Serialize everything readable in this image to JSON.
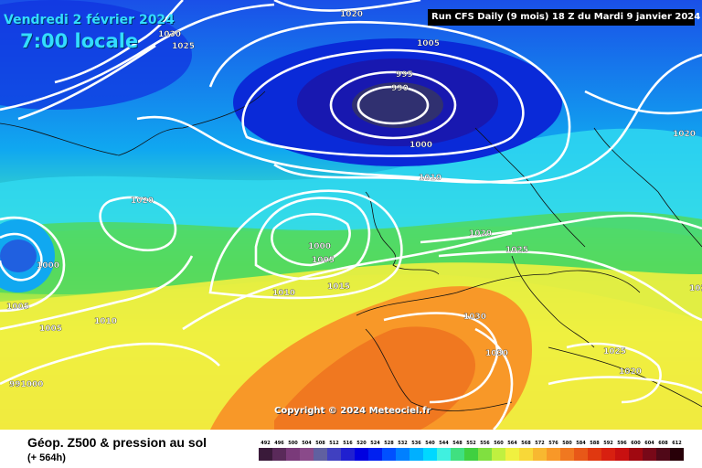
{
  "header": {
    "date": "Vendredi 2 février 2024",
    "time": "7:00 locale",
    "run_info": "Run CFS Daily (9 mois) 18 Z du Mardi 9 janvier 2024"
  },
  "copyright": "Copyright © 2024 Meteociel.fr",
  "footer": {
    "title": "Géop. Z500 & pression au sol",
    "subtitle": "(+ 564h)"
  },
  "isobar_labels": [
    "1020",
    "1030",
    "1025",
    "1005",
    "995",
    "990",
    "1000",
    "1010",
    "1020",
    "1020",
    "1000",
    "1005",
    "1000",
    "1020",
    "1025",
    "1010",
    "1015",
    "1005",
    "1005",
    "1010",
    "1030",
    "1030",
    "1025",
    "1020",
    "1020",
    "991000"
  ],
  "scale": {
    "labels": [
      "492",
      "496",
      "500",
      "504",
      "508",
      "512",
      "516",
      "520",
      "524",
      "528",
      "532",
      "536",
      "540",
      "544",
      "548",
      "552",
      "556",
      "560",
      "564",
      "568",
      "572",
      "576",
      "580",
      "584",
      "588",
      "592",
      "596",
      "600",
      "604",
      "608",
      "612"
    ],
    "colors": [
      "#3a1a3a",
      "#5a2a5a",
      "#7a3a7a",
      "#8a4a8a",
      "#6060a0",
      "#4040c0",
      "#2020d0",
      "#0000e0",
      "#0020f0",
      "#0050ff",
      "#0080ff",
      "#00b0ff",
      "#00d8ff",
      "#40f0e0",
      "#40e080",
      "#40d040",
      "#80e040",
      "#c0f040",
      "#f0f040",
      "#f8d838",
      "#f8b830",
      "#f89828",
      "#f07820",
      "#e85818",
      "#e03810",
      "#d82010",
      "#c81010",
      "#a00810",
      "#780818",
      "#500818",
      "#280008"
    ]
  },
  "colors": {
    "run_box_bg": "#000000",
    "title_text": "#33ddff",
    "contour": "#ffffff"
  }
}
